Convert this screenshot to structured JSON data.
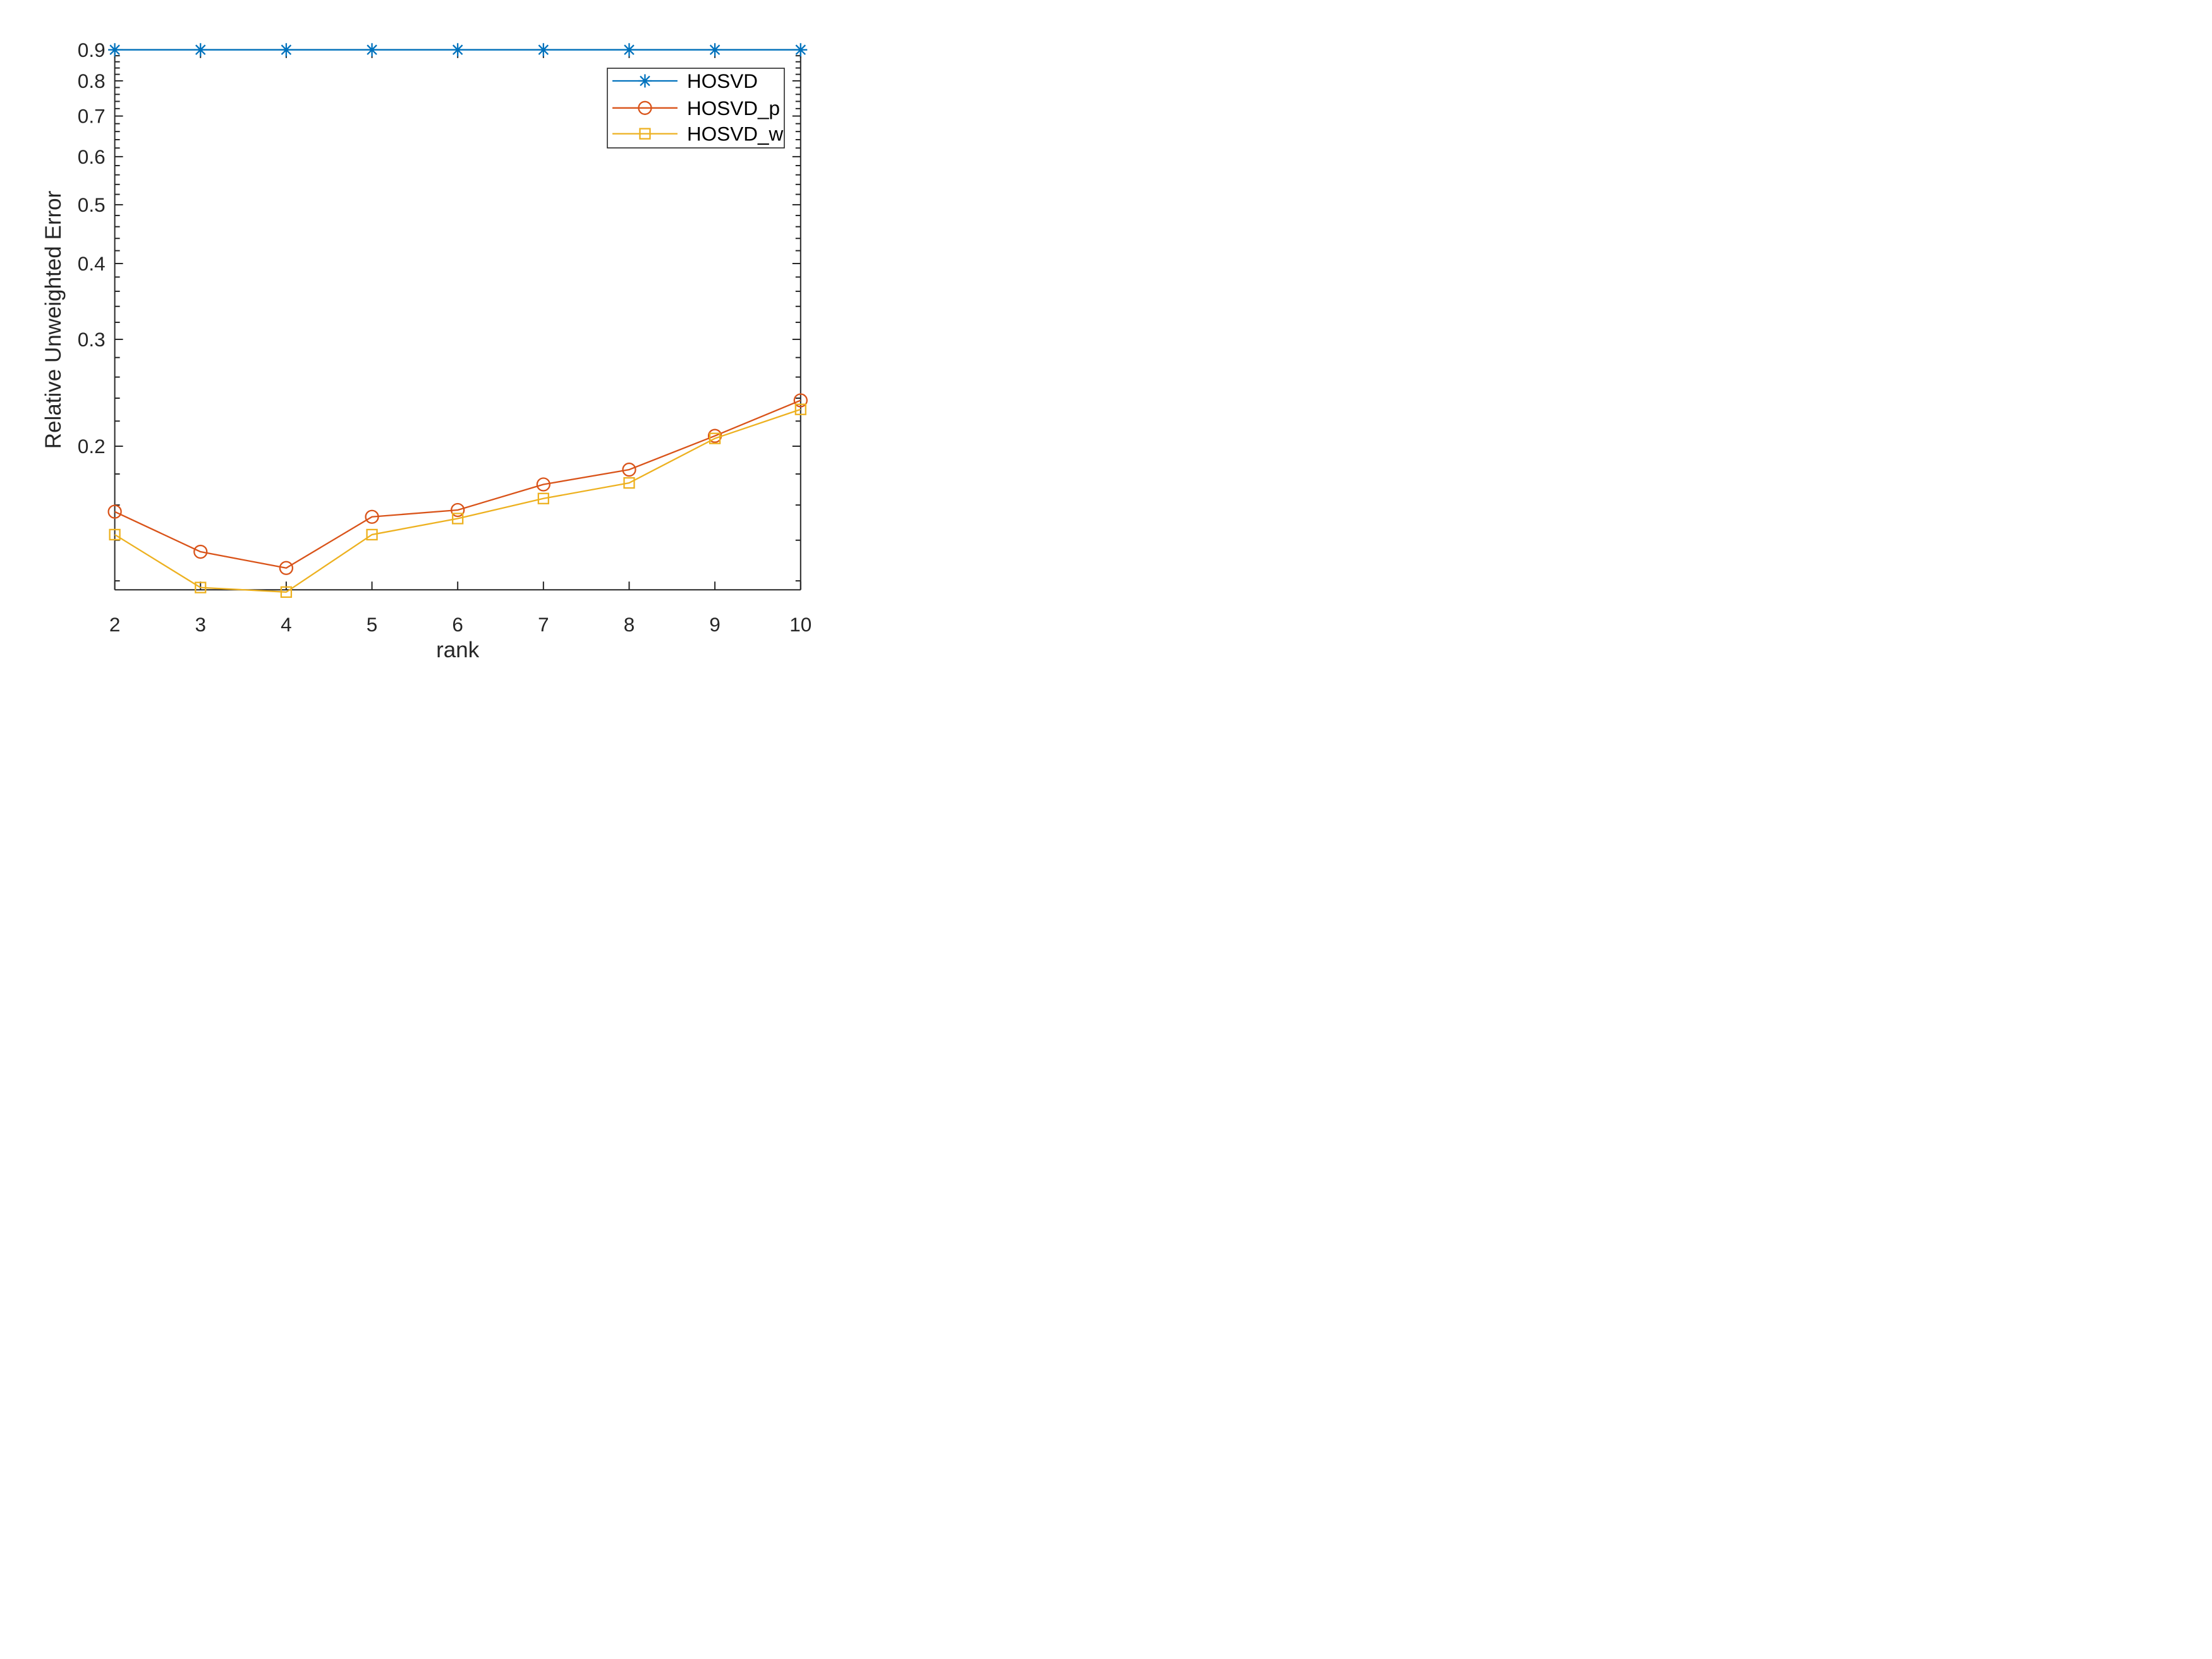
{
  "figure": {
    "background": "#ffffff",
    "text_color": "#262626",
    "axis_color": "#262626"
  },
  "chart_data": {
    "type": "line",
    "title": "",
    "xlabel": "rank",
    "ylabel": "Relative Unweighted Error",
    "x": [
      2,
      3,
      4,
      5,
      6,
      7,
      8,
      9,
      10
    ],
    "xlim": [
      2,
      10
    ],
    "ylim": [
      0.116,
      0.9
    ],
    "yscale": "log",
    "grid": false,
    "xticks": [
      2,
      3,
      4,
      5,
      6,
      7,
      8,
      9,
      10
    ],
    "xtick_labels": [
      "2",
      "3",
      "4",
      "5",
      "6",
      "7",
      "8",
      "9",
      "10"
    ],
    "yticks": [
      0.2,
      0.3,
      0.4,
      0.5,
      0.6,
      0.7,
      0.8,
      0.9
    ],
    "ytick_labels": [
      "0.2",
      "0.3",
      "0.4",
      "0.5",
      "0.6",
      "0.7",
      "0.8",
      "0.9"
    ],
    "y_minor_ticks": [
      0.12,
      0.14,
      0.16,
      0.18,
      0.22,
      0.24,
      0.26,
      0.28,
      0.32,
      0.34,
      0.36,
      0.38,
      0.42,
      0.44,
      0.46,
      0.48,
      0.52,
      0.54,
      0.56,
      0.58,
      0.62,
      0.64,
      0.66,
      0.68,
      0.72,
      0.74,
      0.76,
      0.78,
      0.82,
      0.84,
      0.86,
      0.88
    ],
    "series": [
      {
        "name": "HOSVD",
        "color": "#0072BD",
        "marker": "asterisk",
        "values": [
          0.9,
          0.9,
          0.9,
          0.9,
          0.9,
          0.9,
          0.9,
          0.9,
          0.9
        ]
      },
      {
        "name": "HOSVD_p",
        "color": "#D95319",
        "marker": "circle",
        "values": [
          0.156,
          0.134,
          0.126,
          0.153,
          0.157,
          0.173,
          0.183,
          0.208,
          0.238
        ]
      },
      {
        "name": "HOSVD_w",
        "color": "#EDB120",
        "marker": "square",
        "values": [
          0.143,
          0.117,
          0.115,
          0.143,
          0.152,
          0.164,
          0.174,
          0.206,
          0.23
        ]
      }
    ],
    "legend": {
      "position": "northeast",
      "entries": [
        "HOSVD",
        "HOSVD_p",
        "HOSVD_w"
      ],
      "border_color": "#262626",
      "background": "#ffffff"
    }
  }
}
